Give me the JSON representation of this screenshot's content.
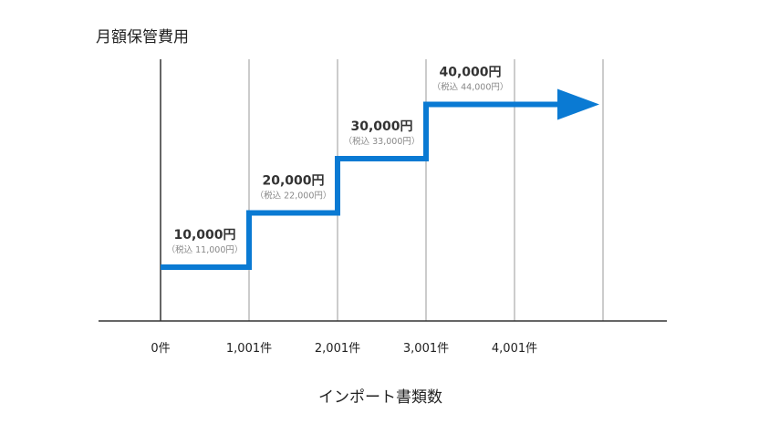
{
  "chart_data": {
    "type": "line",
    "step": true,
    "title": "月額保管費用",
    "xlabel": "インポート書類数",
    "ylabel": "",
    "x_ticks": [
      "0件",
      "1,001件",
      "2,001件",
      "3,001件",
      "4,001件"
    ],
    "series": [
      {
        "values": [
          10000,
          20000,
          30000,
          40000
        ],
        "price_labels": [
          "10,000円",
          "20,000円",
          "30,000円",
          "40,000円"
        ],
        "tax_labels": [
          "（税込 11,000円）",
          "（税込 22,000円）",
          "（税込 33,000円）",
          "（税込 44,000円）"
        ]
      }
    ],
    "ylim": [
      0,
      50000
    ],
    "grid": true,
    "line_color": "#0a7ad3",
    "axis_color": "#333333",
    "grid_color": "#999999"
  }
}
